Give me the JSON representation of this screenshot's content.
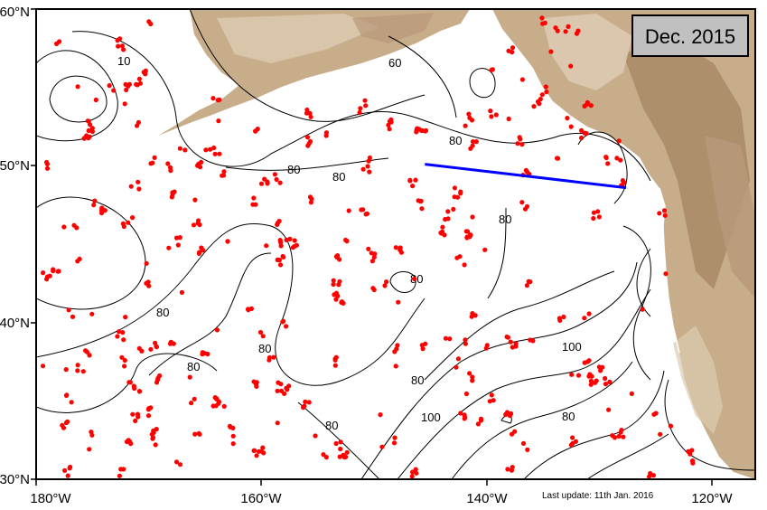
{
  "map": {
    "date_label": "Dec. 2015",
    "last_update": "Last update: 11th Jan. 2016",
    "lat_ticks": [
      "30°N",
      "40°N",
      "50°N",
      "60°N"
    ],
    "lon_ticks": [
      "180°W",
      "160°W",
      "140°W",
      "120°W"
    ],
    "contour_labels": [
      "80",
      "80",
      "80",
      "80",
      "80",
      "80",
      "80",
      "80",
      "80",
      "80",
      "80",
      "100",
      "100",
      "60",
      "10"
    ],
    "colors": {
      "land": "#c8ad8a",
      "land_dark": "#a88764",
      "land_light": "#dccab1",
      "contour": "#000000",
      "float_marker": "#ff0000",
      "section_line": "#0000ff",
      "date_box": "#c0c0c0"
    },
    "section_line": {
      "from": {
        "lon": -145.4,
        "lat": 50.1
      },
      "to": {
        "lon": -127.5,
        "lat": 48.6
      }
    }
  }
}
